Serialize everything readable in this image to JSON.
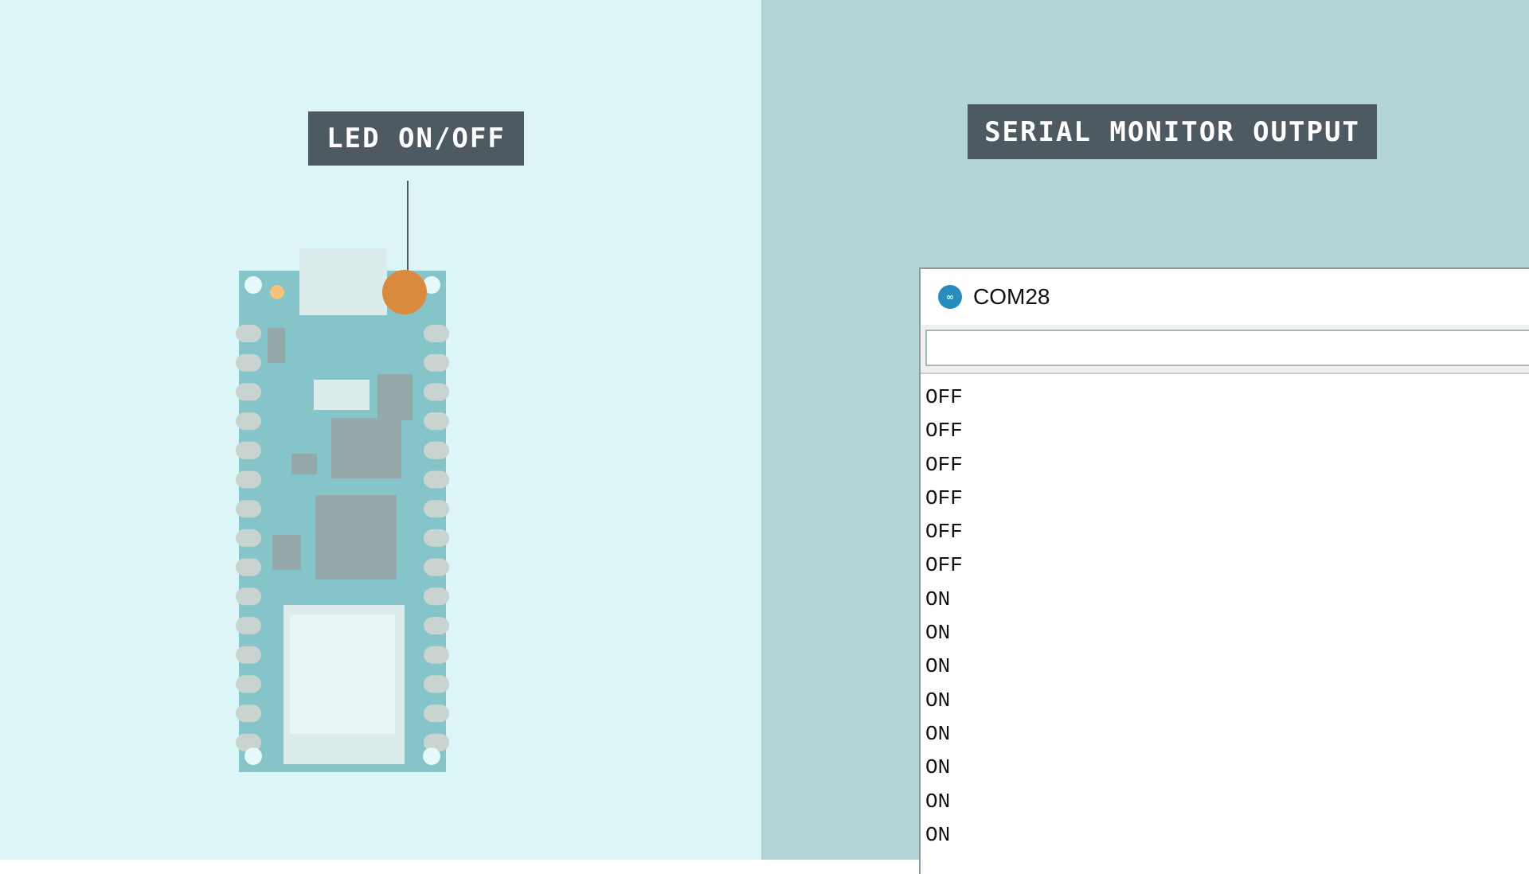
{
  "labels": {
    "led": "LED ON/OFF",
    "serial": "SERIAL MONITOR OUTPUT"
  },
  "serial_monitor": {
    "title": "COM28",
    "app_icon": "arduino-icon",
    "input_value": "",
    "lines": [
      "OFF",
      "OFF",
      "OFF",
      "OFF",
      "OFF",
      "OFF",
      "ON",
      "ON",
      "ON",
      "ON",
      "ON",
      "ON",
      "ON",
      "ON"
    ]
  },
  "colors": {
    "left_bg": "#dcf6f7",
    "right_bg": "#b3d4d6",
    "label_bg": "#4d5a61",
    "board": "#85c4c8",
    "led": "#d98a3c"
  }
}
